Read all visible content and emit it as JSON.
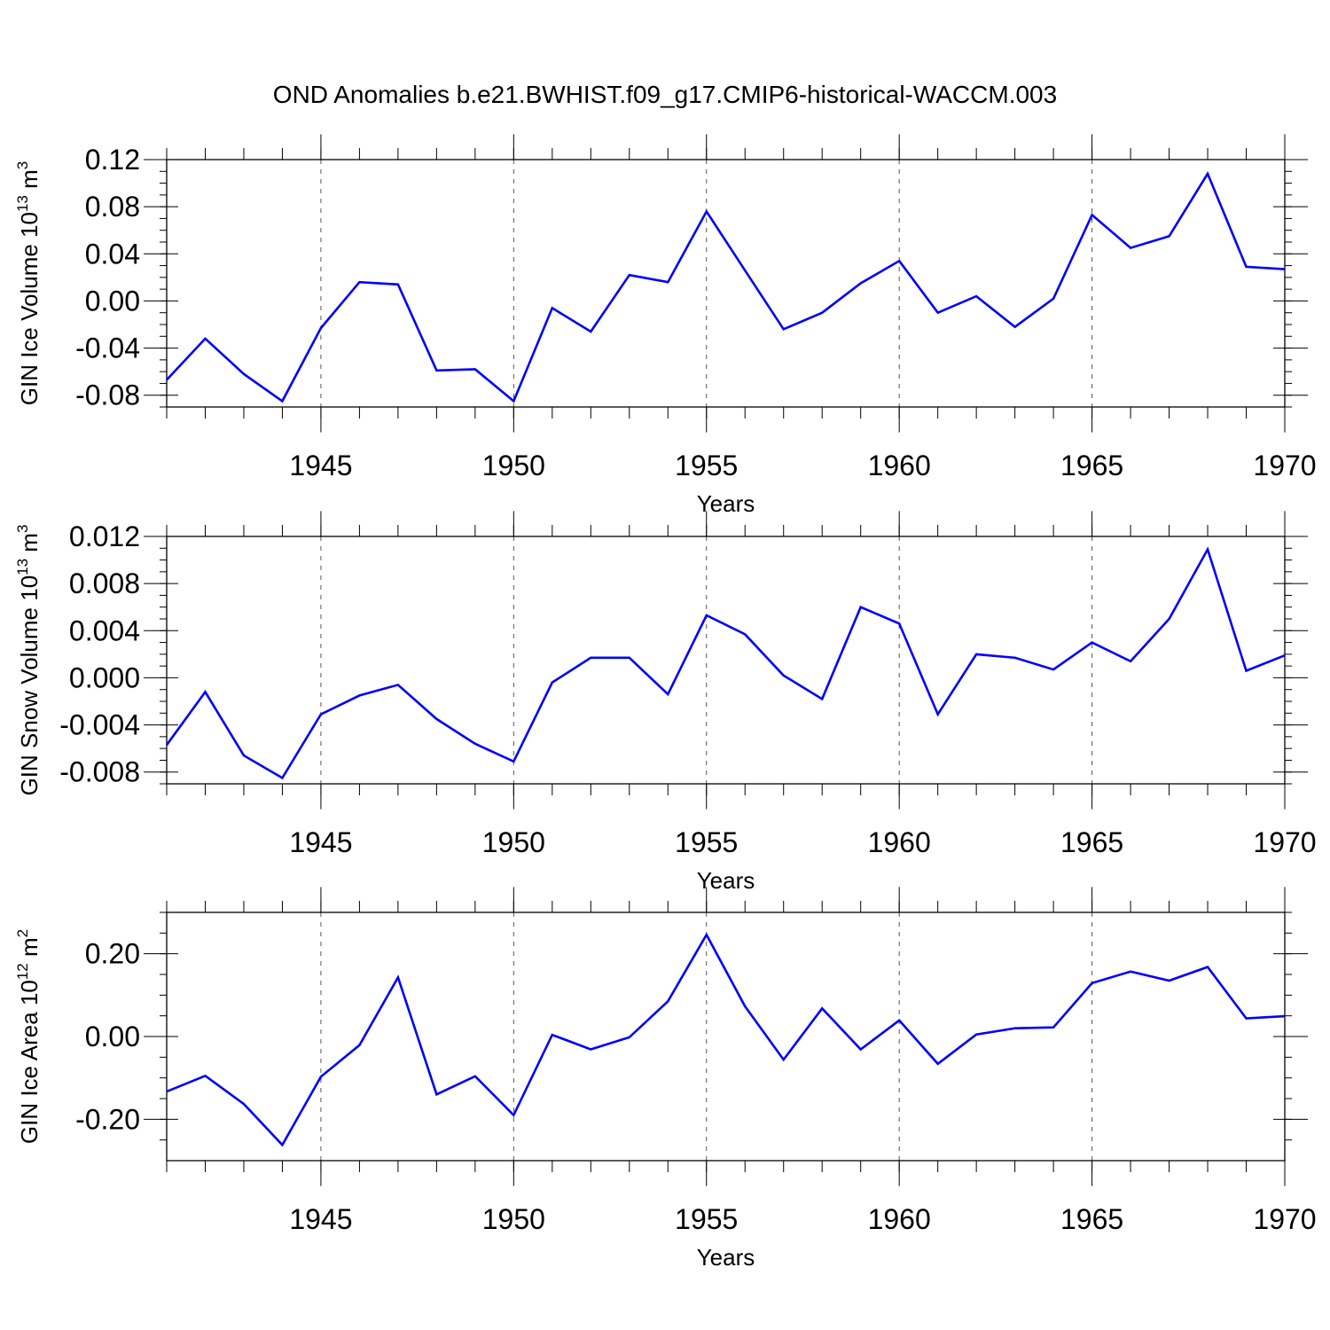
{
  "title": "OND Anomalies b.e21.BWHIST.f09_g17.CMIP6-historical-WACCM.003",
  "chart_data": [
    {
      "type": "line",
      "ylabel": {
        "text": "GIN Ice Volume 10",
        "sup": "13",
        "unit": " m",
        "unit_sup": "3"
      },
      "xlabel": "Years",
      "xlim": [
        1941,
        1970
      ],
      "ylim": [
        -0.09,
        0.12
      ],
      "yticks": [
        "-0.08",
        "-0.04",
        "0.00",
        "0.04",
        "0.08",
        "0.12"
      ],
      "xticks": [
        "1945",
        "1950",
        "1955",
        "1960",
        "1965",
        "1970"
      ],
      "series": [
        {
          "color": "#0000ff",
          "x": [
            1941,
            1942,
            1943,
            1944,
            1945,
            1946,
            1947,
            1948,
            1949,
            1950,
            1951,
            1952,
            1953,
            1954,
            1955,
            1956,
            1957,
            1958,
            1959,
            1960,
            1961,
            1962,
            1963,
            1964,
            1965,
            1966,
            1967,
            1968,
            1969,
            1970
          ],
          "values": [
            -0.067,
            -0.032,
            -0.062,
            -0.085,
            -0.023,
            0.016,
            0.014,
            -0.059,
            -0.058,
            -0.085,
            -0.006,
            -0.026,
            0.022,
            0.016,
            0.076,
            0.026,
            -0.024,
            -0.01,
            0.015,
            0.034,
            -0.01,
            0.004,
            -0.022,
            0.002,
            0.073,
            0.045,
            0.055,
            0.108,
            0.029,
            0.027
          ]
        }
      ]
    },
    {
      "type": "line",
      "ylabel": {
        "text": "GIN Snow Volume 10",
        "sup": "13",
        "unit": " m",
        "unit_sup": "3"
      },
      "xlabel": "Years",
      "xlim": [
        1941,
        1970
      ],
      "ylim": [
        -0.009,
        0.012
      ],
      "yticks": [
        "-0.008",
        "-0.004",
        "0.000",
        "0.004",
        "0.008",
        "0.012"
      ],
      "xticks": [
        "1945",
        "1950",
        "1955",
        "1960",
        "1965",
        "1970"
      ],
      "series": [
        {
          "color": "#0000ff",
          "x": [
            1941,
            1942,
            1943,
            1944,
            1945,
            1946,
            1947,
            1948,
            1949,
            1950,
            1951,
            1952,
            1953,
            1954,
            1955,
            1956,
            1957,
            1958,
            1959,
            1960,
            1961,
            1962,
            1963,
            1964,
            1965,
            1966,
            1967,
            1968,
            1969,
            1970
          ],
          "values": [
            -0.0057,
            -0.0012,
            -0.0066,
            -0.0085,
            -0.0031,
            -0.0015,
            -0.0006,
            -0.0035,
            -0.0056,
            -0.0071,
            -0.0004,
            0.0017,
            0.0017,
            -0.0014,
            0.0053,
            0.0037,
            0.0002,
            -0.0018,
            0.006,
            0.0046,
            -0.0031,
            0.002,
            0.0017,
            0.0007,
            0.003,
            0.0014,
            0.005,
            0.0109,
            0.0006,
            0.0019
          ]
        }
      ]
    },
    {
      "type": "line",
      "ylabel": {
        "text": "GIN Ice Area 10",
        "sup": "12",
        "unit": " m",
        "unit_sup": "2"
      },
      "xlabel": "Years",
      "xlim": [
        1941,
        1970
      ],
      "ylim": [
        -0.3,
        0.3
      ],
      "yticks": [
        "-0.20",
        "0.00",
        "0.20"
      ],
      "xticks": [
        "1945",
        "1950",
        "1955",
        "1960",
        "1965",
        "1970"
      ],
      "series": [
        {
          "color": "#0000ff",
          "x": [
            1941,
            1942,
            1943,
            1944,
            1945,
            1946,
            1947,
            1948,
            1949,
            1950,
            1951,
            1952,
            1953,
            1954,
            1955,
            1956,
            1957,
            1958,
            1959,
            1960,
            1961,
            1962,
            1963,
            1964,
            1965,
            1966,
            1967,
            1968,
            1969,
            1970
          ],
          "values": [
            -0.133,
            -0.095,
            -0.163,
            -0.262,
            -0.097,
            -0.021,
            0.143,
            -0.14,
            -0.096,
            -0.19,
            0.004,
            -0.031,
            -0.002,
            0.085,
            0.246,
            0.073,
            -0.056,
            0.068,
            -0.031,
            0.039,
            -0.066,
            0.005,
            0.02,
            0.022,
            0.129,
            0.157,
            0.135,
            0.168,
            0.044,
            0.049
          ]
        }
      ]
    }
  ]
}
